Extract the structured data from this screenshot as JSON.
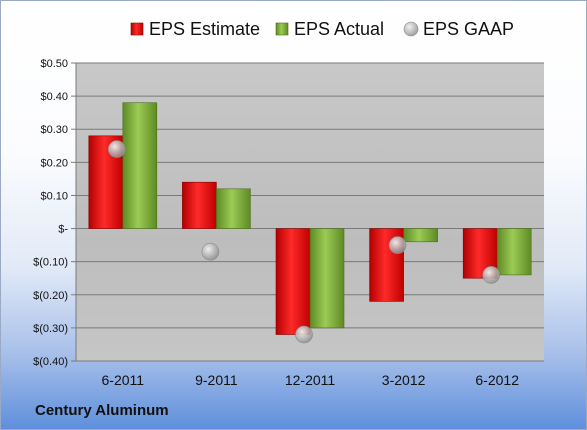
{
  "company": "Century Aluminum",
  "chart_data": {
    "type": "bar",
    "categories": [
      "6-2011",
      "9-2011",
      "12-2011",
      "3-2012",
      "6-2012"
    ],
    "series": [
      {
        "name": "EPS Estimate",
        "kind": "bar",
        "color": "#d90e0e",
        "values": [
          0.28,
          0.14,
          -0.32,
          -0.22,
          -0.15
        ]
      },
      {
        "name": "EPS Actual",
        "kind": "bar",
        "color": "#7aa43a",
        "values": [
          0.38,
          0.12,
          -0.3,
          -0.04,
          -0.14
        ]
      },
      {
        "name": "EPS GAAP",
        "kind": "marker",
        "color": "#a8a8a8",
        "values": [
          0.24,
          -0.07,
          -0.32,
          -0.05,
          -0.14
        ]
      }
    ],
    "ylim": [
      -0.4,
      0.5
    ],
    "yticks": [
      0.5,
      0.4,
      0.3,
      0.2,
      0.1,
      0.0,
      -0.1,
      -0.2,
      -0.3,
      -0.4
    ],
    "ytick_labels": [
      "$0.50",
      "$0.40",
      "$0.30",
      "$0.20",
      "$0.10",
      "$-",
      "$(0.10)",
      "$(0.20)",
      "$(0.30)",
      "$(0.40)"
    ],
    "grid": true,
    "legend_position": "top",
    "plot_background": "#c0c0c0"
  }
}
